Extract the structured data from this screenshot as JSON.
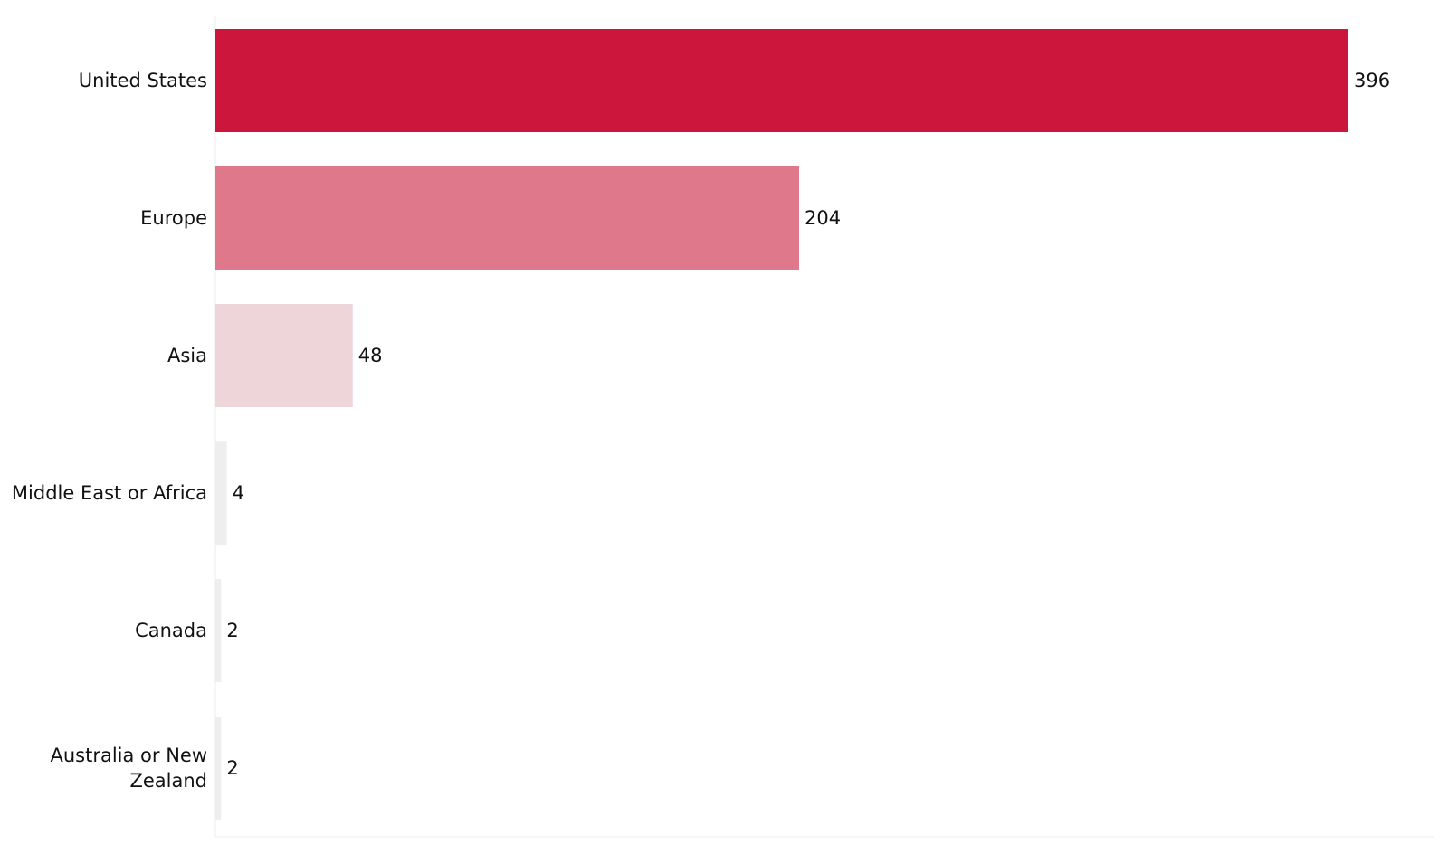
{
  "chart_data": {
    "type": "bar",
    "orientation": "horizontal",
    "categories": [
      "United States",
      "Europe",
      "Asia",
      "Middle East or Africa",
      "Canada",
      "Australia or New Zealand"
    ],
    "values": [
      396,
      204,
      48,
      4,
      2,
      2
    ],
    "colors": [
      "#cd163b",
      "#e0788c",
      "#edd5d9",
      "#eeeeee",
      "#eeeeee",
      "#eeeeee"
    ],
    "label_color": "#111111",
    "xlim": [
      0,
      396
    ],
    "grid": false,
    "legend": "none",
    "title": "",
    "xlabel": "",
    "ylabel": ""
  }
}
